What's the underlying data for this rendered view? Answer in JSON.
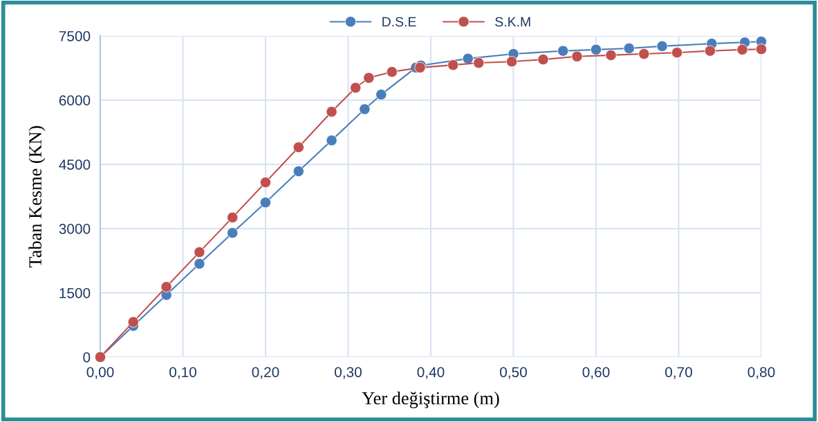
{
  "chart_data": {
    "type": "line",
    "xlabel": "Yer değiştirme (m)",
    "ylabel": "Taban Kesme (KN)",
    "series": [
      {
        "name": "D.S.E",
        "color": "#4a7ebb",
        "x": [
          0,
          0.04,
          0.08,
          0.12,
          0.16,
          0.2,
          0.24,
          0.28,
          0.32,
          0.34,
          0.382,
          0.388,
          0.445,
          0.5,
          0.56,
          0.6,
          0.64,
          0.68,
          0.74,
          0.78,
          0.8
        ],
        "values": [
          0,
          730,
          1450,
          2180,
          2900,
          3610,
          4340,
          5060,
          5790,
          6130,
          6760,
          6810,
          6970,
          7080,
          7150,
          7180,
          7210,
          7260,
          7320,
          7350,
          7370
        ]
      },
      {
        "name": "S.K.M",
        "color": "#c0504d",
        "x": [
          0,
          0.04,
          0.08,
          0.12,
          0.16,
          0.2,
          0.24,
          0.28,
          0.309,
          0.325,
          0.353,
          0.387,
          0.427,
          0.458,
          0.498,
          0.536,
          0.577,
          0.618,
          0.658,
          0.698,
          0.738,
          0.777,
          0.8
        ],
        "values": [
          0,
          820,
          1640,
          2450,
          3260,
          4080,
          4900,
          5730,
          6290,
          6520,
          6660,
          6760,
          6820,
          6870,
          6900,
          6950,
          7020,
          7050,
          7080,
          7110,
          7150,
          7180,
          7190
        ]
      }
    ],
    "xlim": [
      0,
      0.8
    ],
    "xticks": [
      {
        "value": 0,
        "label": "0,00"
      },
      {
        "value": 0.1,
        "label": "0,10"
      },
      {
        "value": 0.2,
        "label": "0,20"
      },
      {
        "value": 0.3,
        "label": "0,30"
      },
      {
        "value": 0.4,
        "label": "0,40"
      },
      {
        "value": 0.5,
        "label": "0,50"
      },
      {
        "value": 0.6,
        "label": "0,60"
      },
      {
        "value": 0.7,
        "label": "0,70"
      },
      {
        "value": 0.8,
        "label": "0,80"
      }
    ],
    "ylim": [
      0,
      7500
    ],
    "yticks": [
      0,
      1500,
      3000,
      4500,
      6000,
      7500
    ],
    "grid": true,
    "legend": "top",
    "marker": "circle",
    "line_style": "solid"
  }
}
